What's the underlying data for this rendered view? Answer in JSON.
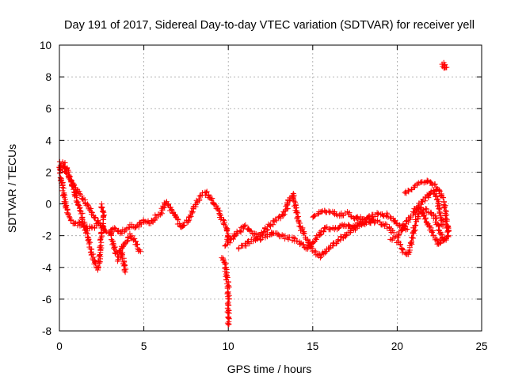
{
  "chart_data": {
    "type": "scatter",
    "title": "Day 191 of 2017, Sidereal Day-to-day VTEC variation (SDTVAR) for receiver yell",
    "xlabel": "GPS time / hours",
    "ylabel": "SDTVAR / TECUs",
    "xlim": [
      0,
      25
    ],
    "ylim": [
      -8,
      10
    ],
    "xticks": [
      0,
      5,
      10,
      15,
      20,
      25
    ],
    "yticks": [
      -8,
      -6,
      -4,
      -2,
      0,
      2,
      4,
      6,
      8,
      10
    ],
    "grid": true,
    "marker": "+",
    "series": [
      {
        "name": "SDTVAR",
        "color": "#ff0000",
        "segments": [
          [
            [
              0.0,
              2.6
            ],
            [
              0.3,
              2.2
            ],
            [
              0.6,
              1.6
            ],
            [
              0.9,
              1.0
            ],
            [
              1.2,
              0.6
            ],
            [
              1.5,
              0.2
            ],
            [
              1.8,
              -0.3
            ],
            [
              2.1,
              -0.8
            ],
            [
              2.4,
              -1.3
            ],
            [
              2.7,
              -1.7
            ],
            [
              3.0,
              -1.8
            ],
            [
              3.3,
              -1.6
            ],
            [
              3.6,
              -1.8
            ],
            [
              3.9,
              -1.6
            ],
            [
              4.2,
              -1.4
            ],
            [
              4.5,
              -1.5
            ],
            [
              4.8,
              -1.2
            ],
            [
              5.1,
              -1.0
            ],
            [
              5.4,
              -1.2
            ],
            [
              5.7,
              -0.8
            ],
            [
              6.0,
              -0.6
            ],
            [
              6.3,
              0.1
            ],
            [
              6.6,
              -0.3
            ],
            [
              6.9,
              -0.8
            ],
            [
              7.2,
              -1.5
            ],
            [
              7.5,
              -1.2
            ],
            [
              7.8,
              -0.7
            ],
            [
              8.1,
              0.0
            ],
            [
              8.4,
              0.5
            ],
            [
              8.7,
              0.7
            ],
            [
              9.0,
              0.3
            ],
            [
              9.3,
              -0.2
            ],
            [
              9.6,
              -0.9
            ],
            [
              9.9,
              -1.6
            ],
            [
              10.0,
              -2.4
            ]
          ],
          [
            [
              0.0,
              2.3
            ],
            [
              0.2,
              1.0
            ],
            [
              0.4,
              -0.3
            ],
            [
              0.6,
              -0.9
            ],
            [
              0.9,
              -1.2
            ],
            [
              1.2,
              -1.3
            ],
            [
              1.5,
              -1.4
            ],
            [
              1.8,
              -1.5
            ],
            [
              2.1,
              -1.4
            ],
            [
              2.4,
              -1.2
            ]
          ],
          [
            [
              0.2,
              2.6
            ],
            [
              0.4,
              2.3
            ],
            [
              0.6,
              1.6
            ],
            [
              0.8,
              0.9
            ],
            [
              1.0,
              0.4
            ],
            [
              1.3,
              -0.6
            ],
            [
              1.6,
              -1.8
            ],
            [
              1.9,
              -3.0
            ],
            [
              2.1,
              -3.8
            ],
            [
              2.3,
              -4.1
            ],
            [
              2.4,
              -3.2
            ],
            [
              2.5,
              -2.0
            ],
            [
              2.6,
              -0.8
            ],
            [
              2.5,
              0.0
            ]
          ],
          [
            [
              3.0,
              -1.6
            ],
            [
              3.2,
              -2.6
            ],
            [
              3.4,
              -3.2
            ],
            [
              3.6,
              -2.9
            ],
            [
              3.8,
              -2.6
            ],
            [
              4.0,
              -2.3
            ],
            [
              4.2,
              -2.0
            ],
            [
              4.4,
              -2.2
            ],
            [
              4.6,
              -2.6
            ],
            [
              4.8,
              -3.0
            ]
          ],
          [
            [
              3.5,
              -3.6
            ],
            [
              3.7,
              -3.1
            ],
            [
              3.9,
              -4.3
            ]
          ],
          [
            [
              9.6,
              -3.4
            ],
            [
              9.8,
              -3.7
            ],
            [
              9.9,
              -4.7
            ],
            [
              10.0,
              -5.1
            ],
            [
              10.0,
              -6.4
            ],
            [
              10.0,
              -7.6
            ]
          ],
          [
            [
              9.8,
              -2.6
            ],
            [
              10.2,
              -2.2
            ],
            [
              10.6,
              -1.8
            ],
            [
              11.0,
              -1.4
            ],
            [
              11.4,
              -1.8
            ],
            [
              11.8,
              -2.2
            ],
            [
              12.2,
              -2.0
            ],
            [
              12.6,
              -1.8
            ],
            [
              13.0,
              -2.0
            ],
            [
              13.4,
              -2.1
            ],
            [
              13.8,
              -2.2
            ],
            [
              14.2,
              -2.5
            ],
            [
              14.6,
              -2.8
            ],
            [
              15.0,
              -2.4
            ],
            [
              15.4,
              -1.9
            ],
            [
              15.8,
              -1.5
            ],
            [
              16.2,
              -1.6
            ],
            [
              16.6,
              -1.4
            ],
            [
              17.0,
              -1.3
            ],
            [
              17.4,
              -1.6
            ],
            [
              17.8,
              -1.4
            ],
            [
              18.2,
              -1.2
            ],
            [
              18.6,
              -1.1
            ],
            [
              19.0,
              -1.2
            ],
            [
              19.4,
              -1.4
            ],
            [
              19.8,
              -1.8
            ]
          ],
          [
            [
              10.6,
              -2.8
            ],
            [
              11.0,
              -2.6
            ],
            [
              11.4,
              -2.3
            ],
            [
              11.8,
              -2.0
            ],
            [
              12.2,
              -1.6
            ],
            [
              12.6,
              -1.2
            ],
            [
              13.0,
              -0.9
            ],
            [
              13.4,
              -0.5
            ],
            [
              13.6,
              0.3
            ],
            [
              13.8,
              0.6
            ],
            [
              14.0,
              -0.3
            ],
            [
              14.2,
              -1.3
            ],
            [
              14.6,
              -2.1
            ],
            [
              15.0,
              -2.9
            ],
            [
              15.4,
              -3.3
            ],
            [
              15.8,
              -2.9
            ],
            [
              16.2,
              -2.6
            ],
            [
              16.6,
              -2.2
            ],
            [
              17.0,
              -1.9
            ],
            [
              17.4,
              -1.5
            ],
            [
              17.8,
              -1.2
            ],
            [
              18.2,
              -0.9
            ],
            [
              18.6,
              -0.7
            ],
            [
              19.0,
              -0.6
            ],
            [
              19.4,
              -0.7
            ],
            [
              19.8,
              -1.0
            ],
            [
              20.2,
              -1.4
            ],
            [
              20.6,
              -1.6
            ]
          ],
          [
            [
              15.0,
              -0.8
            ],
            [
              15.4,
              -0.6
            ],
            [
              15.8,
              -0.5
            ],
            [
              16.2,
              -0.6
            ],
            [
              16.6,
              -0.7
            ],
            [
              17.0,
              -0.6
            ],
            [
              17.4,
              -0.8
            ],
            [
              17.8,
              -0.9
            ],
            [
              18.2,
              -1.0
            ],
            [
              18.6,
              -1.0
            ]
          ],
          [
            [
              19.6,
              -2.2
            ],
            [
              20.0,
              -2.0
            ],
            [
              20.4,
              -1.4
            ],
            [
              20.8,
              -0.8
            ],
            [
              21.2,
              -0.4
            ],
            [
              21.6,
              -0.3
            ],
            [
              22.0,
              -0.5
            ],
            [
              22.2,
              -0.8
            ],
            [
              22.4,
              -1.3
            ],
            [
              22.6,
              -1.9
            ],
            [
              22.8,
              -2.4
            ],
            [
              23.0,
              -2.0
            ],
            [
              23.0,
              -1.4
            ]
          ],
          [
            [
              20.0,
              -2.4
            ],
            [
              20.4,
              -3.0
            ],
            [
              20.6,
              -3.2
            ],
            [
              20.8,
              -2.6
            ],
            [
              21.0,
              -1.6
            ],
            [
              21.2,
              -0.8
            ],
            [
              21.5,
              -0.4
            ],
            [
              21.8,
              -1.2
            ],
            [
              22.0,
              -1.6
            ],
            [
              22.2,
              -2.0
            ],
            [
              22.4,
              -2.6
            ],
            [
              22.6,
              -2.2
            ]
          ],
          [
            [
              20.4,
              0.7
            ],
            [
              20.8,
              0.9
            ],
            [
              21.2,
              1.2
            ],
            [
              21.6,
              1.4
            ],
            [
              22.0,
              1.3
            ],
            [
              22.4,
              1.0
            ],
            [
              22.6,
              0.6
            ],
            [
              22.8,
              0.0
            ],
            [
              22.9,
              -1.0
            ],
            [
              23.0,
              -1.7
            ]
          ],
          [
            [
              21.0,
              -0.4
            ],
            [
              21.3,
              -0.1
            ],
            [
              21.6,
              0.3
            ],
            [
              21.9,
              0.6
            ],
            [
              22.1,
              0.9
            ],
            [
              22.3,
              0.4
            ],
            [
              22.5,
              -0.3
            ],
            [
              22.7,
              -1.4
            ]
          ],
          [
            [
              22.7,
              8.9
            ],
            [
              22.75,
              8.7
            ],
            [
              22.8,
              8.6
            ],
            [
              22.85,
              8.75
            ],
            [
              22.9,
              8.6
            ]
          ]
        ]
      }
    ]
  }
}
